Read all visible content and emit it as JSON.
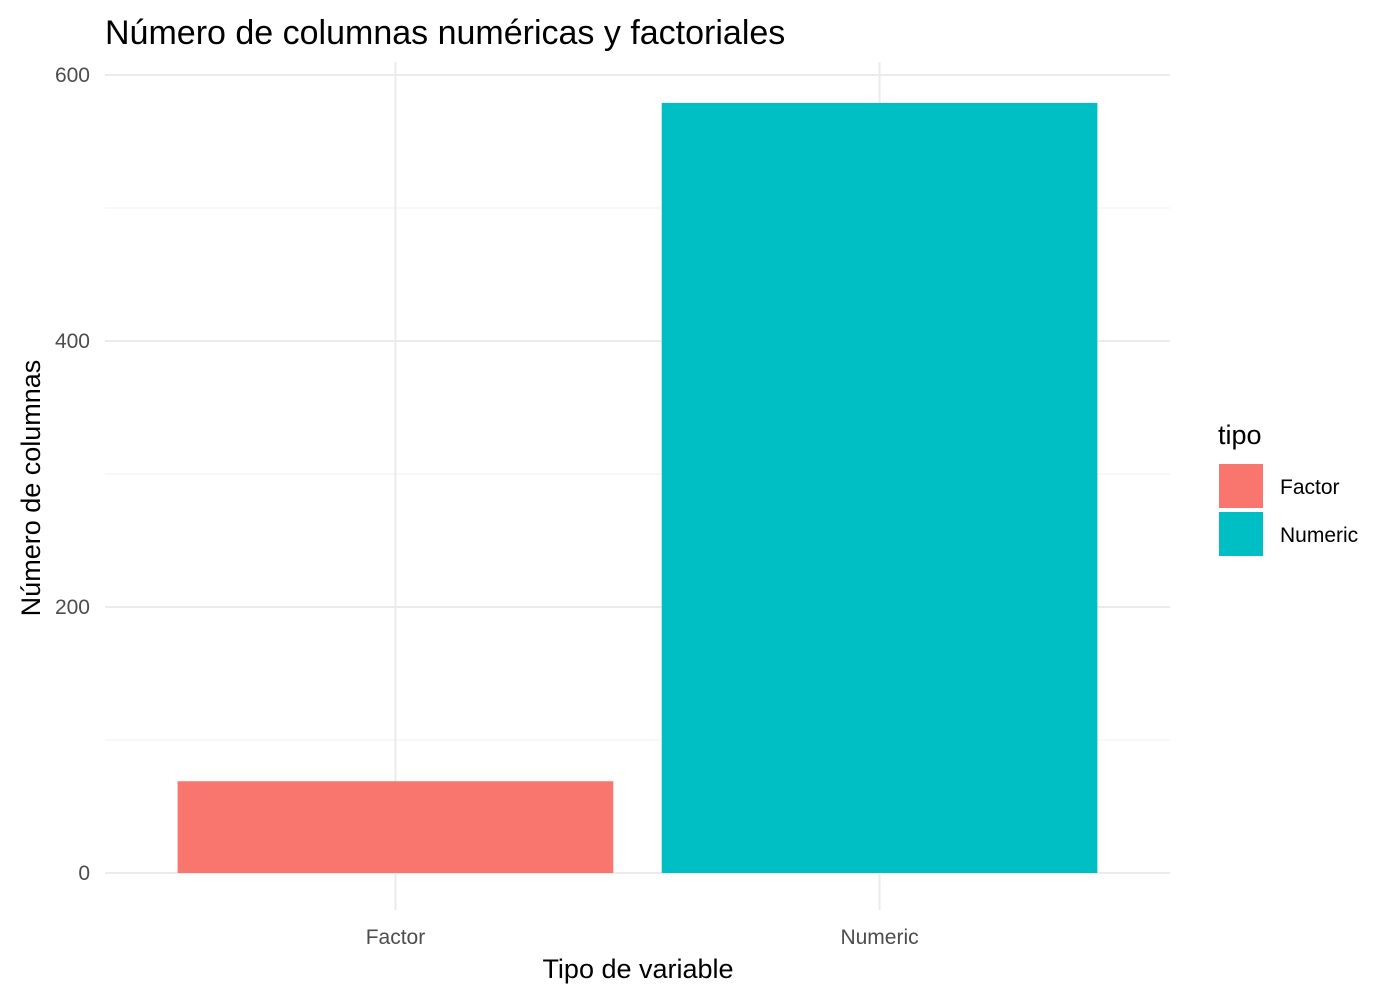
{
  "chart_data": {
    "type": "bar",
    "title": "Número de columnas numéricas y factoriales",
    "xlabel": "Tipo de variable",
    "ylabel": "Número de columnas",
    "categories": [
      "Factor",
      "Numeric"
    ],
    "values": [
      69,
      579
    ],
    "colors": [
      "#F8766D",
      "#00BFC4"
    ],
    "ylim": [
      0,
      600
    ],
    "y_ticks": [
      0,
      200,
      400,
      600
    ],
    "y_tick_labels": [
      "0",
      "200",
      "400",
      "600"
    ],
    "y_minor_ticks": [
      100,
      300,
      500
    ],
    "grid": true,
    "legend": {
      "title": "tipo",
      "placement": "right",
      "entries": [
        "Factor",
        "Numeric"
      ]
    }
  }
}
